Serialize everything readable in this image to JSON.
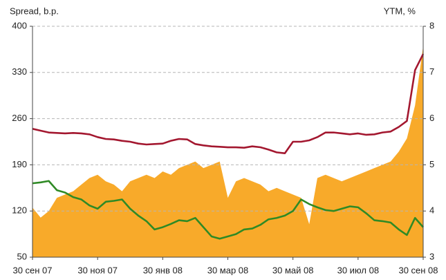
{
  "chart_data": {
    "type": "area_line",
    "y_label": "Spread, b.p.",
    "y2_label": "YTM, %",
    "categories": [
      "30 сен 07",
      null,
      null,
      null,
      null,
      null,
      null,
      null,
      "30 ноя 07",
      null,
      null,
      null,
      null,
      null,
      null,
      null,
      "30 янв 08",
      null,
      null,
      null,
      null,
      null,
      null,
      null,
      "30 мар 08",
      null,
      null,
      null,
      null,
      null,
      null,
      null,
      "30 май 08",
      null,
      null,
      null,
      null,
      null,
      null,
      null,
      "30 июл 08",
      null,
      null,
      null,
      null,
      null,
      null,
      null,
      "30 сен 08"
    ],
    "ylim": [
      50,
      400
    ],
    "yticks": [
      50,
      120,
      190,
      260,
      330,
      400
    ],
    "y2lim": [
      3,
      8
    ],
    "y2ticks": [
      3,
      4,
      5,
      6,
      7,
      8
    ],
    "grid": true,
    "series": [
      {
        "type": "area",
        "color": "#f8aa2a",
        "values": [
          125,
          110,
          120,
          140,
          145,
          150,
          160,
          170,
          175,
          165,
          160,
          150,
          165,
          170,
          175,
          170,
          180,
          175,
          185,
          190,
          195,
          185,
          190,
          195,
          140,
          165,
          170,
          165,
          160,
          150,
          155,
          150,
          145,
          140,
          100,
          170,
          175,
          170,
          165,
          170,
          175,
          180,
          185,
          190,
          195,
          210,
          230,
          280,
          370
        ]
      },
      {
        "type": "line",
        "axis": "y2",
        "color": "#a3172f",
        "values": [
          5.78,
          5.74,
          5.7,
          5.69,
          5.68,
          5.69,
          5.68,
          5.66,
          5.6,
          5.56,
          5.55,
          5.52,
          5.5,
          5.46,
          5.44,
          5.45,
          5.46,
          5.52,
          5.56,
          5.55,
          5.45,
          5.42,
          5.4,
          5.39,
          5.38,
          5.38,
          5.37,
          5.4,
          5.38,
          5.33,
          5.27,
          5.25,
          5.5,
          5.5,
          5.53,
          5.6,
          5.7,
          5.7,
          5.68,
          5.66,
          5.68,
          5.65,
          5.66,
          5.7,
          5.72,
          5.82,
          5.95,
          7.05,
          7.4
        ]
      },
      {
        "type": "line",
        "axis": "y2",
        "color": "#2f8a25",
        "values": [
          4.6,
          4.62,
          4.65,
          4.45,
          4.4,
          4.3,
          4.25,
          4.12,
          4.05,
          4.2,
          4.22,
          4.25,
          4.05,
          3.9,
          3.78,
          3.6,
          3.65,
          3.72,
          3.8,
          3.78,
          3.85,
          3.65,
          3.45,
          3.4,
          3.45,
          3.5,
          3.6,
          3.62,
          3.7,
          3.82,
          3.85,
          3.9,
          4.0,
          4.25,
          4.15,
          4.08,
          4.02,
          4.0,
          4.05,
          4.1,
          4.08,
          3.95,
          3.8,
          3.78,
          3.75,
          3.6,
          3.48,
          3.85,
          3.65
        ]
      }
    ]
  }
}
